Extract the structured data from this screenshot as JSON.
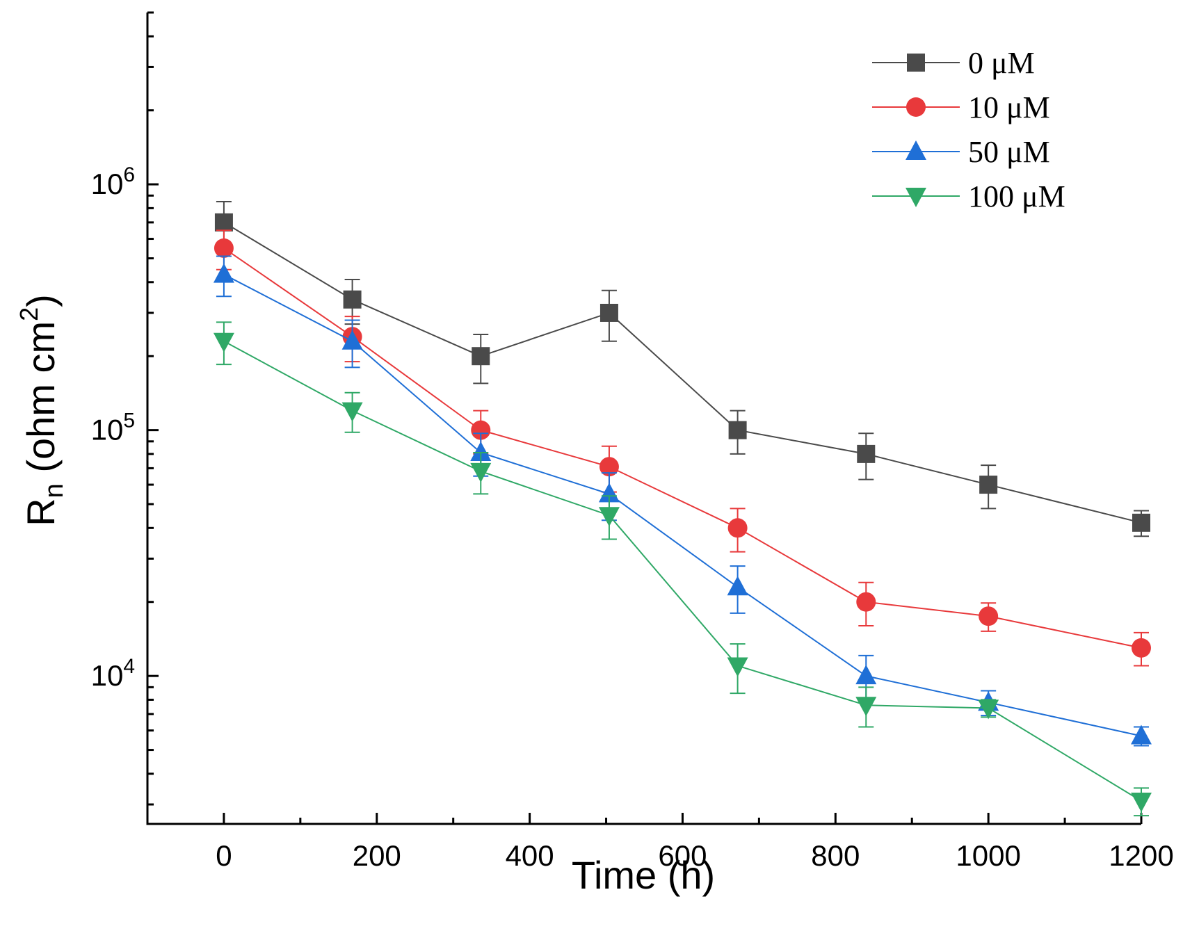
{
  "chart_data": {
    "type": "line",
    "xlabel": "Time (h)",
    "ylabel_main": "R",
    "ylabel_sub": "n",
    "ylabel_rest": " (ohm cm",
    "ylabel_sup": "2",
    "ylabel_close": ")",
    "xlim": [
      -100,
      1200
    ],
    "ylim": [
      2500,
      5000000
    ],
    "yscale": "log",
    "x_ticks": [
      0,
      200,
      400,
      600,
      800,
      1000,
      1200
    ],
    "x_tick_labels": [
      "0",
      "200",
      "400",
      "600",
      "800",
      "1000",
      "1200"
    ],
    "y_major_ticks": [
      {
        "value": 10000,
        "base": "10",
        "exp": "4"
      },
      {
        "value": 100000,
        "base": "10",
        "exp": "5"
      },
      {
        "value": 1000000,
        "base": "10",
        "exp": "6"
      }
    ],
    "x": [
      0,
      168,
      336,
      504,
      672,
      840,
      1000,
      1200
    ],
    "legend_position": "top-right",
    "series": [
      {
        "name": "0 μM",
        "color": "#4a4a4a",
        "marker": "square",
        "values": [
          700000,
          340000,
          200000,
          300000,
          100000,
          80000,
          60000,
          42000
        ],
        "error": [
          150000,
          70000,
          45000,
          70000,
          20000,
          17000,
          12000,
          5000
        ]
      },
      {
        "name": "10 μM",
        "color": "#e8393b",
        "marker": "circle",
        "values": [
          550000,
          240000,
          100000,
          71000,
          40000,
          20000,
          17500,
          13000
        ],
        "error": [
          100000,
          50000,
          20000,
          15000,
          8000,
          4000,
          2300,
          2000
        ]
      },
      {
        "name": "50 μM",
        "color": "#1f6fd6",
        "marker": "triangle-up",
        "values": [
          430000,
          230000,
          81000,
          55000,
          23000,
          10000,
          7800,
          5700
        ],
        "error": [
          80000,
          50000,
          16000,
          12000,
          5000,
          2100,
          900,
          500
        ]
      },
      {
        "name": "100 μM",
        "color": "#2fa866",
        "marker": "triangle-down",
        "values": [
          230000,
          120000,
          68000,
          45000,
          11000,
          7600,
          7400,
          3100
        ],
        "error": [
          45000,
          22000,
          13000,
          9000,
          2500,
          1400,
          600,
          400
        ]
      }
    ]
  }
}
